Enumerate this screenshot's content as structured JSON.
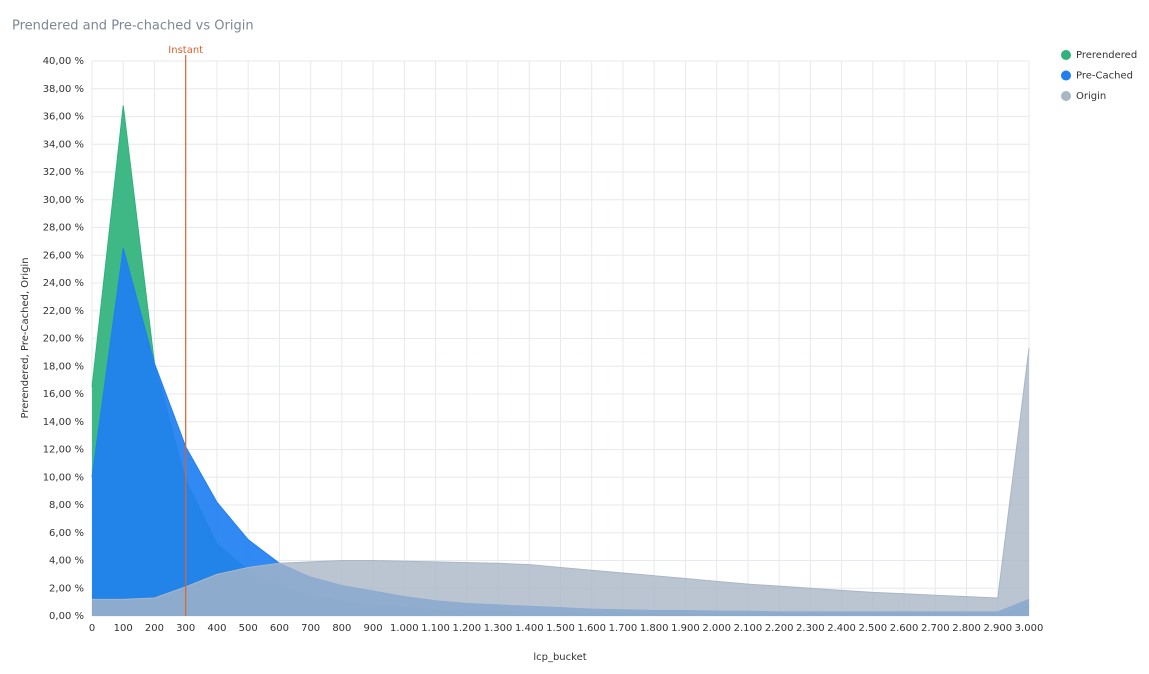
{
  "chart_data": {
    "type": "area",
    "title": "Prendered and Pre-chached vs Origin",
    "x_label": "lcp_bucket",
    "y_label": "Prerendered, Pre-Cached, Origin",
    "annotation": {
      "x": 300,
      "label": "Instant",
      "color": "#e0622a"
    },
    "x": [
      0,
      100,
      200,
      300,
      400,
      500,
      600,
      700,
      800,
      900,
      1000,
      1100,
      1200,
      1300,
      1400,
      1500,
      1600,
      1700,
      1800,
      1900,
      2000,
      2100,
      2200,
      2300,
      2400,
      2500,
      2600,
      2700,
      2800,
      2900,
      3000
    ],
    "series": [
      {
        "name": "Prerendered",
        "color": "#2fb27c",
        "values": [
          16.5,
          36.8,
          18.2,
          9.8,
          5.2,
          3.3,
          2.2,
          1.5,
          1.1,
          0.8,
          0.6,
          0.5,
          0.4,
          0.35,
          0.3,
          0.3,
          0.25,
          0.25,
          0.2,
          0.2,
          0.2,
          0.2,
          0.2,
          0.2,
          0.15,
          0.15,
          0.15,
          0.15,
          0.15,
          0.15,
          0.8
        ]
      },
      {
        "name": "Pre-Cached",
        "color": "#1f7ff2",
        "values": [
          10,
          26.5,
          18.2,
          12.2,
          8.2,
          5.5,
          3.8,
          2.8,
          2.2,
          1.8,
          1.4,
          1.1,
          0.9,
          0.8,
          0.7,
          0.6,
          0.5,
          0.45,
          0.4,
          0.4,
          0.35,
          0.35,
          0.3,
          0.3,
          0.3,
          0.3,
          0.3,
          0.3,
          0.3,
          0.3,
          1.2
        ]
      },
      {
        "name": "Origin",
        "color": "#a9b6c5",
        "values": [
          1.2,
          1.2,
          1.3,
          2.1,
          3.0,
          3.5,
          3.8,
          3.9,
          4.0,
          4.0,
          3.95,
          3.9,
          3.85,
          3.8,
          3.7,
          3.5,
          3.3,
          3.1,
          2.9,
          2.7,
          2.5,
          2.3,
          2.15,
          2.0,
          1.85,
          1.7,
          1.6,
          1.5,
          1.4,
          1.3,
          19.3
        ]
      }
    ],
    "xlim": [
      0,
      3000
    ],
    "xticks": [
      0,
      100,
      200,
      300,
      400,
      500,
      600,
      700,
      800,
      900,
      {
        "value": 1000,
        "label": "1.000"
      },
      {
        "value": 1100,
        "label": "1.100"
      },
      {
        "value": 1200,
        "label": "1.200"
      },
      {
        "value": 1300,
        "label": "1.300"
      },
      {
        "value": 1400,
        "label": "1.400"
      },
      {
        "value": 1500,
        "label": "1.500"
      },
      {
        "value": 1600,
        "label": "1.600"
      },
      {
        "value": 1700,
        "label": "1.700"
      },
      {
        "value": 1800,
        "label": "1.800"
      },
      {
        "value": 1900,
        "label": "1.900"
      },
      {
        "value": 2000,
        "label": "2.000"
      },
      {
        "value": 2100,
        "label": "2.100"
      },
      {
        "value": 2200,
        "label": "2.200"
      },
      {
        "value": 2300,
        "label": "2.300"
      },
      {
        "value": 2400,
        "label": "2.400"
      },
      {
        "value": 2500,
        "label": "2.500"
      },
      {
        "value": 2600,
        "label": "2.600"
      },
      {
        "value": 2700,
        "label": "2.700"
      },
      {
        "value": 2800,
        "label": "2.800"
      },
      {
        "value": 2900,
        "label": "2.900"
      },
      {
        "value": 3000,
        "label": "3.000"
      }
    ],
    "ylim": [
      0,
      40
    ],
    "yticks": [
      {
        "value": 0,
        "label": "0,00 %"
      },
      {
        "value": 2,
        "label": "2,00 %"
      },
      {
        "value": 4,
        "label": "4,00 %"
      },
      {
        "value": 6,
        "label": "6,00 %"
      },
      {
        "value": 8,
        "label": "8,00 %"
      },
      {
        "value": 10,
        "label": "10,00 %"
      },
      {
        "value": 12,
        "label": "12,00 %"
      },
      {
        "value": 14,
        "label": "14,00 %"
      },
      {
        "value": 16,
        "label": "16,00 %"
      },
      {
        "value": 18,
        "label": "18,00 %"
      },
      {
        "value": 20,
        "label": "20,00 %"
      },
      {
        "value": 22,
        "label": "22,00 %"
      },
      {
        "value": 24,
        "label": "24,00 %"
      },
      {
        "value": 26,
        "label": "26,00 %"
      },
      {
        "value": 28,
        "label": "28,00 %"
      },
      {
        "value": 30,
        "label": "30,00 %"
      },
      {
        "value": 32,
        "label": "32,00 %"
      },
      {
        "value": 34,
        "label": "34,00 %"
      },
      {
        "value": 36,
        "label": "36,00 %"
      },
      {
        "value": 38,
        "label": "38,00 %"
      },
      {
        "value": 40,
        "label": "40,00 %"
      }
    ],
    "grid": true,
    "legend": "top-right"
  }
}
